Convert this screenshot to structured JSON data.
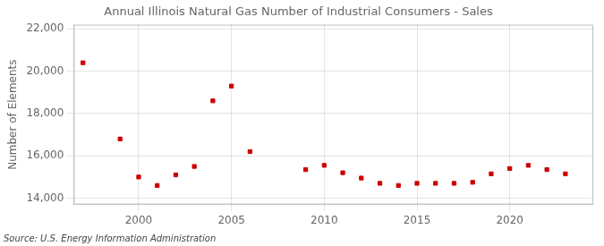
{
  "chart_data": {
    "type": "scatter",
    "title": "Annual Illinois Natural Gas Number of Industrial Consumers - Sales",
    "ylabel": "Number of Elements",
    "annotations": [
      "Source: U.S. Energy Information Administration"
    ],
    "x": [
      1997,
      1999,
      2000,
      2001,
      2002,
      2003,
      2004,
      2005,
      2006,
      2009,
      2010,
      2011,
      2012,
      2013,
      2014,
      2015,
      2016,
      2017,
      2018,
      2019,
      2020,
      2021,
      2022,
      2023
    ],
    "values": [
      20400,
      16800,
      15000,
      14600,
      15100,
      15500,
      18600,
      19300,
      16200,
      15350,
      15550,
      15200,
      14950,
      14700,
      14600,
      14700,
      14700,
      14700,
      14750,
      15150,
      15400,
      15550,
      15350,
      15150
    ],
    "color": "#cc0000",
    "marker": "square",
    "xlim": [
      1996.5,
      2024.5
    ],
    "xticks": [
      2000,
      2005,
      2010,
      2015,
      2020
    ],
    "ylim": [
      13700,
      22200
    ],
    "yticks": [
      {
        "value": 14000,
        "label": "14,000"
      },
      {
        "value": 16000,
        "label": "16,000"
      },
      {
        "value": 18000,
        "label": "18,000"
      },
      {
        "value": 20000,
        "label": "20,000"
      },
      {
        "value": 22000,
        "label": "22,000"
      }
    ],
    "grid": true
  }
}
